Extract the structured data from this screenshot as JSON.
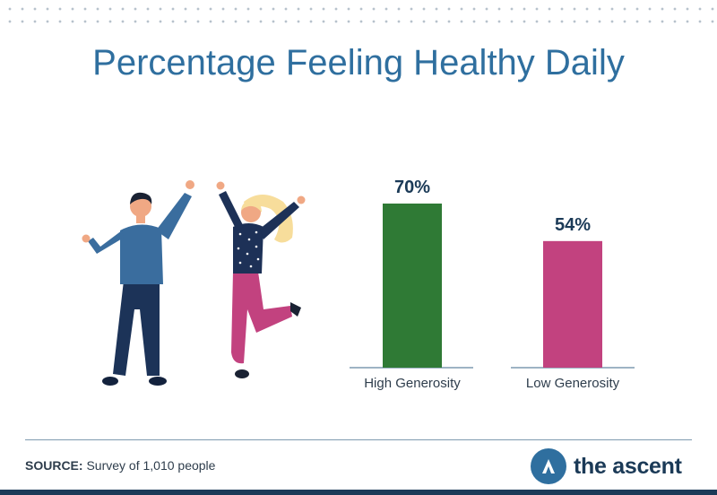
{
  "header": {
    "title": "Percentage Feeling Healthy Daily"
  },
  "chart_data": {
    "type": "bar",
    "title": "Percentage Feeling Healthy Daily",
    "categories": [
      "High Generosity",
      "Low Generosity"
    ],
    "values": [
      70,
      54
    ],
    "value_labels": [
      "70%",
      "54%"
    ],
    "unit": "%",
    "colors": [
      "#2f7a35",
      "#c2427f"
    ],
    "ylim": [
      0,
      100
    ],
    "grid": false,
    "legend": "none"
  },
  "footer": {
    "source_label": "SOURCE:",
    "source_text": "Survey of 1,010 people",
    "brand_name": "the ascent",
    "brand_icon": "ascent-logo-icon"
  },
  "colors": {
    "title": "#2f6f9f",
    "brand": "#1b3a57",
    "accent": "#2f6f9f"
  }
}
